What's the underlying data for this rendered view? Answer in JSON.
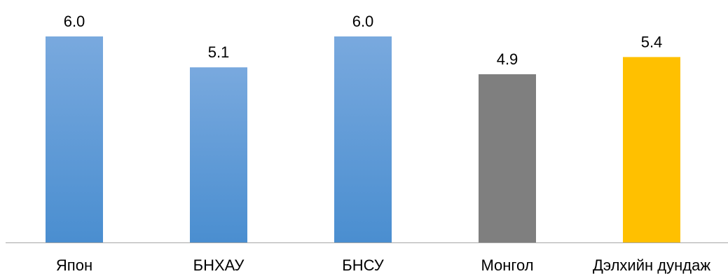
{
  "chart_data": {
    "type": "bar",
    "categories": [
      "Япон",
      "БНХАУ",
      "БНСУ",
      "Монгол",
      "Дэлхийн дундаж"
    ],
    "values": [
      6.0,
      5.1,
      6.0,
      4.9,
      5.4
    ],
    "value_labels": [
      "6.0",
      "5.1",
      "6.0",
      "4.9",
      "5.4"
    ],
    "title": "",
    "xlabel": "",
    "ylabel": "",
    "ylim": [
      0,
      6.0
    ],
    "grid": false,
    "legend": "none",
    "colors": {
      "blue_top": "#79A9DE",
      "blue_bottom": "#4A8ED0",
      "gray": "#7F7F7F",
      "gold": "#FFC000",
      "axis": "#A6A6A6"
    },
    "bar_colors": [
      "blue",
      "blue",
      "blue",
      "gray",
      "gold"
    ]
  }
}
